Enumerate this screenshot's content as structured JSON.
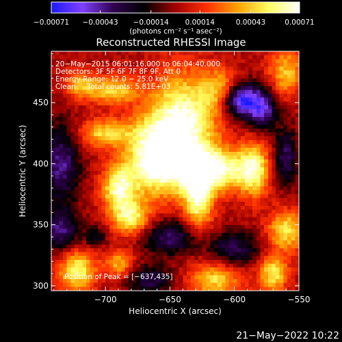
{
  "chart_data": {
    "type": "heatmap",
    "title": "Reconstructed RHESSI Image",
    "xlabel": "Heliocentric X (arcsec)",
    "ylabel": "Heliocentric Y (arcsec)",
    "xlim": [
      -742,
      -550
    ],
    "ylim": [
      296,
      492
    ],
    "x_ticks": [
      -700,
      -650,
      -600,
      -550
    ],
    "x_tick_labels": [
      "−700",
      "−650",
      "−600",
      "−550"
    ],
    "y_ticks": [
      300,
      350,
      400,
      450
    ],
    "y_tick_labels": [
      "300",
      "350",
      "400",
      "450"
    ],
    "colorbar": {
      "range": [
        -0.00071,
        0.00071
      ],
      "ticks": [
        -0.00071,
        -0.00043,
        -0.00014,
        0.00014,
        0.00043,
        0.00071
      ],
      "tick_labels": [
        "−0.00071",
        "−0.00043",
        "−0.00014",
        "0.00014",
        "0.00043",
        "0.00071"
      ],
      "unit_label": "(photons cm⁻² s⁻¹ asec⁻²)",
      "colors": [
        "#1a1aff",
        "#8040ff",
        "#300050",
        "#000000",
        "#a00000",
        "#ff3000",
        "#ffa000",
        "#ffff60",
        "#ffffff"
      ]
    },
    "info_lines": [
      "20−May−2015 06:01:16.000 to 06:04:40.000",
      "Detectors: 3F 5F 6F 7F 8F 9F, Att 0",
      "Energy Range: 12.0 − 25.0 keV",
      "Clean     Total counts: 5.81E+03"
    ],
    "peak_label": "Position of Peak = [−637,435]",
    "peak_position": [
      -637,
      435
    ],
    "heatmap_blobs": [
      {
        "x": -640,
        "y": 430,
        "sx": 18,
        "sy": 30,
        "v": 0.00071
      },
      {
        "x": -618,
        "y": 395,
        "sx": 22,
        "sy": 12,
        "v": 0.00065
      },
      {
        "x": -665,
        "y": 405,
        "sx": 14,
        "sy": 22,
        "v": 0.0006
      },
      {
        "x": -690,
        "y": 380,
        "sx": 9,
        "sy": 14,
        "v": 0.00058
      },
      {
        "x": -680,
        "y": 355,
        "sx": 10,
        "sy": 10,
        "v": 0.0005
      },
      {
        "x": -628,
        "y": 370,
        "sx": 8,
        "sy": 18,
        "v": 0.00055
      },
      {
        "x": -585,
        "y": 395,
        "sx": 8,
        "sy": 16,
        "v": 0.00048
      },
      {
        "x": -700,
        "y": 425,
        "sx": 14,
        "sy": 8,
        "v": 0.00045
      },
      {
        "x": -695,
        "y": 460,
        "sx": 14,
        "sy": 8,
        "v": 0.00045
      },
      {
        "x": -720,
        "y": 465,
        "sx": 8,
        "sy": 8,
        "v": 0.00035
      },
      {
        "x": -610,
        "y": 460,
        "sx": 10,
        "sy": 12,
        "v": 0.0004
      },
      {
        "x": -560,
        "y": 475,
        "sx": 10,
        "sy": 14,
        "v": 0.0004
      },
      {
        "x": -560,
        "y": 345,
        "sx": 10,
        "sy": 12,
        "v": 0.00048
      },
      {
        "x": -615,
        "y": 305,
        "sx": 14,
        "sy": 10,
        "v": 0.00045
      },
      {
        "x": -722,
        "y": 312,
        "sx": 10,
        "sy": 12,
        "v": 0.00055
      },
      {
        "x": -690,
        "y": 318,
        "sx": 8,
        "sy": 8,
        "v": 0.00035
      },
      {
        "x": -570,
        "y": 310,
        "sx": 8,
        "sy": 10,
        "v": 0.0005
      },
      {
        "x": -596,
        "y": 452,
        "sx": 10,
        "sy": 10,
        "v": -0.00071
      },
      {
        "x": -578,
        "y": 445,
        "sx": 8,
        "sy": 12,
        "v": -0.0005
      },
      {
        "x": -735,
        "y": 400,
        "sx": 10,
        "sy": 22,
        "v": -0.00045
      },
      {
        "x": -735,
        "y": 345,
        "sx": 10,
        "sy": 12,
        "v": -0.0004
      },
      {
        "x": -650,
        "y": 340,
        "sx": 16,
        "sy": 10,
        "v": -0.0004
      },
      {
        "x": -600,
        "y": 330,
        "sx": 14,
        "sy": 10,
        "v": -0.00035
      },
      {
        "x": -560,
        "y": 405,
        "sx": 6,
        "sy": 16,
        "v": -0.0004
      },
      {
        "x": -665,
        "y": 305,
        "sx": 12,
        "sy": 8,
        "v": -0.00035
      },
      {
        "x": -708,
        "y": 340,
        "sx": 6,
        "sy": 6,
        "v": -0.00025
      }
    ]
  },
  "footer": {
    "timestamp": "21−May−2022 10:22"
  }
}
